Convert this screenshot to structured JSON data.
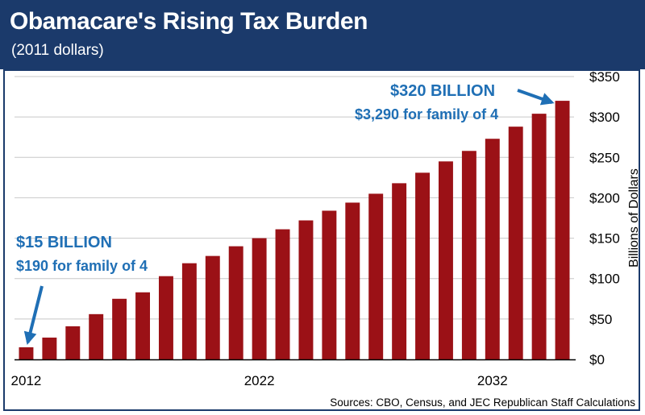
{
  "header": {
    "title": "Obamacare's Rising Tax Burden",
    "subtitle": "(2011 dollars)"
  },
  "source": "Sources: CBO, Census, and JEC Republican Staff Calculations",
  "colors": {
    "header_bg": "#1b3a6b",
    "bar": "#9b1116",
    "annotation": "#1f6fb5",
    "grid": "#c8c8c8"
  },
  "annotations": {
    "start": {
      "headline": "$15 BILLION",
      "detail": "$190 for family of 4"
    },
    "end": {
      "headline": "$320 BILLION",
      "detail": "$3,290 for family of 4"
    }
  },
  "chart_data": {
    "type": "bar",
    "title": "Obamacare's Rising Tax Burden",
    "subtitle": "(2011 dollars)",
    "xlabel": "",
    "ylabel": "Billions of Dollars",
    "categories": [
      2012,
      2013,
      2014,
      2015,
      2016,
      2017,
      2018,
      2019,
      2020,
      2021,
      2022,
      2023,
      2024,
      2025,
      2026,
      2027,
      2028,
      2029,
      2030,
      2031,
      2032,
      2033,
      2034,
      2035
    ],
    "x_tick_labels": [
      "2012",
      "2022",
      "2032"
    ],
    "values": [
      15,
      27,
      41,
      56,
      75,
      83,
      103,
      119,
      128,
      140,
      150,
      161,
      172,
      184,
      194,
      205,
      218,
      231,
      245,
      258,
      273,
      288,
      304,
      320
    ],
    "ylim": [
      0,
      350
    ],
    "y_ticks": [
      0,
      50,
      100,
      150,
      200,
      250,
      300,
      350
    ],
    "y_tick_labels": [
      "$0",
      "$50",
      "$100",
      "$150",
      "$200",
      "$250",
      "$300",
      "$350"
    ],
    "grid": true,
    "axis_side": "right"
  }
}
